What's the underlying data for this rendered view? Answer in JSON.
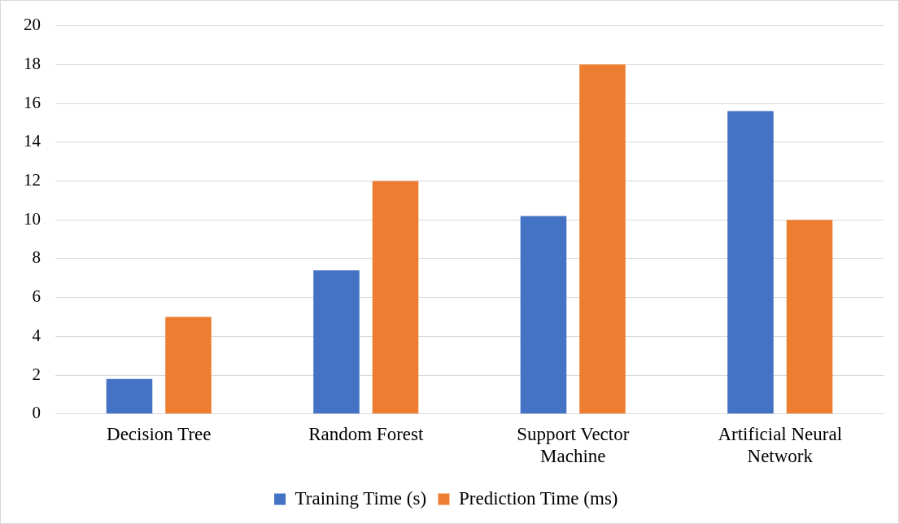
{
  "chart_data": {
    "type": "bar",
    "categories": [
      "Decision Tree",
      "Random Forest",
      "Support Vector Machine",
      "Artificial Neural Network"
    ],
    "series": [
      {
        "name": "Training Time (s)",
        "color": "#4472c4",
        "values": [
          1.8,
          7.4,
          10.2,
          15.6
        ]
      },
      {
        "name": "Prediction Time (ms)",
        "color": "#ed7d31",
        "values": [
          5,
          12,
          18,
          10
        ]
      }
    ],
    "ylim": [
      0,
      20
    ],
    "yticks": [
      0,
      2,
      4,
      6,
      8,
      10,
      12,
      14,
      16,
      18,
      20
    ],
    "grid": "y",
    "legend": "bottom"
  }
}
